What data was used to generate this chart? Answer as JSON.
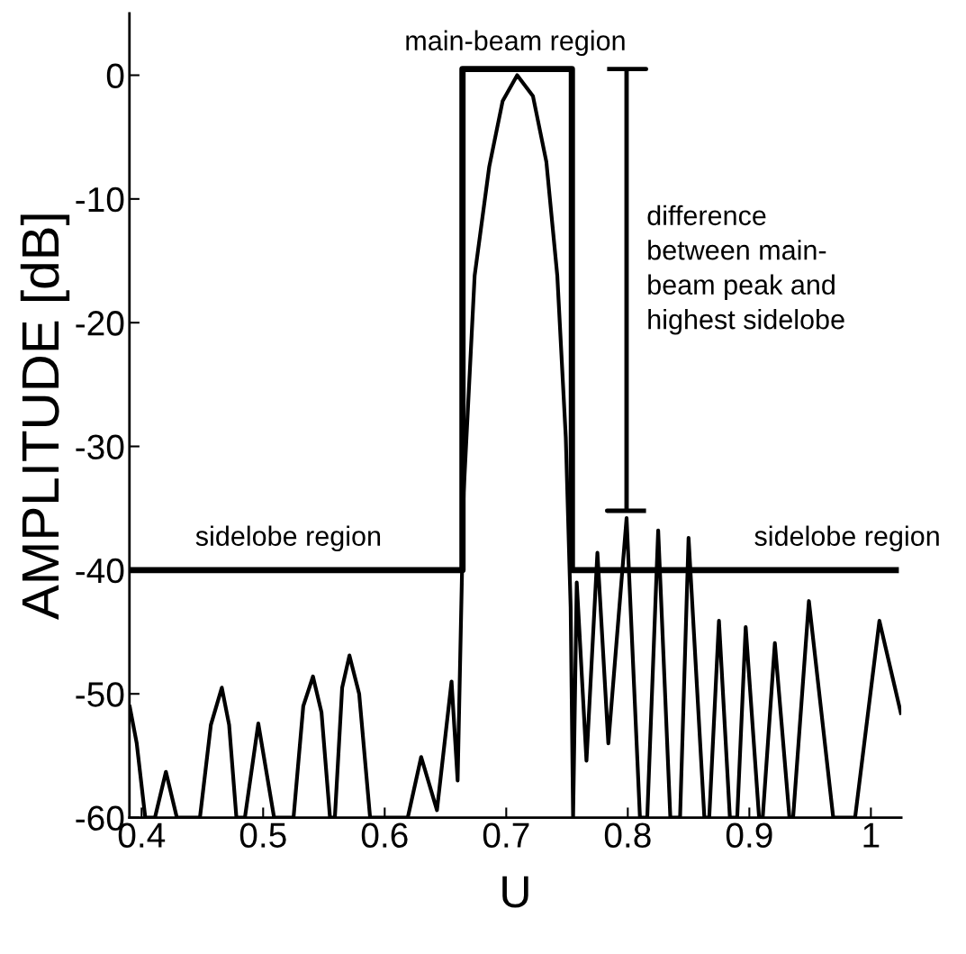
{
  "chart_data": {
    "type": "line",
    "xlabel": "U",
    "ylabel": "AMPLITUDE [dB]",
    "xlim": [
      0.39,
      1.025
    ],
    "ylim": [
      -60,
      5
    ],
    "xticks": [
      0.4,
      0.5,
      0.6,
      0.7,
      0.8,
      0.9,
      1
    ],
    "yticks": [
      0,
      -10,
      -20,
      -30,
      -40,
      -50,
      -60
    ],
    "grid": false,
    "legend": false,
    "series": [
      {
        "color": "#000000",
        "x": [
          0.39,
          0.396,
          0.403,
          0.411,
          0.42,
          0.429,
          0.448,
          0.457,
          0.466,
          0.472,
          0.478,
          0.485,
          0.496,
          0.509,
          0.525,
          0.533,
          0.541,
          0.548,
          0.555,
          0.559,
          0.565,
          0.571,
          0.579,
          0.588,
          0.619,
          0.63,
          0.643,
          0.655,
          0.66,
          0.665,
          0.674,
          0.686,
          0.697,
          0.709,
          0.722,
          0.733,
          0.742,
          0.749,
          0.753,
          0.755,
          0.758,
          0.766,
          0.775,
          0.784,
          0.799,
          0.81,
          0.816,
          0.825,
          0.835,
          0.843,
          0.85,
          0.863,
          0.867,
          0.875,
          0.884,
          0.89,
          0.897,
          0.908,
          0.911,
          0.921,
          0.933,
          0.936,
          0.949,
          0.969,
          0.987,
          1.007,
          1.025
        ],
        "values": [
          -50.9,
          -54,
          -60,
          -60,
          -56.3,
          -60,
          -60,
          -52.5,
          -49.5,
          -52.5,
          -60,
          -60,
          -52.4,
          -60,
          -60,
          -51,
          -48.6,
          -51.5,
          -60,
          -60,
          -49.5,
          -46.9,
          -50,
          -60,
          -60,
          -55.1,
          -59.4,
          -49.0,
          -57.0,
          -33.7,
          -16.2,
          -7.4,
          -2.1,
          0,
          -1.7,
          -7,
          -16.2,
          -29.3,
          -43,
          -60,
          -41,
          -55.4,
          -38.6,
          -54,
          -35.8,
          -60,
          -60,
          -36.8,
          -60,
          -60,
          -37.4,
          -60,
          -60,
          -44.1,
          -60,
          -60,
          -44.6,
          -60,
          -60,
          -45.9,
          -60,
          -60,
          -42.5,
          -60,
          -60,
          -44.1,
          -51.7
        ]
      },
      {
        "color": "#000000",
        "x": [
          0.39,
          0.664,
          0.664,
          0.754,
          0.754,
          1.023
        ],
        "values": [
          -40,
          -40,
          0.5,
          0.5,
          -40,
          -40
        ]
      },
      {
        "color": "#000000",
        "x": [
          0.783,
          0.815,
          0.799,
          0.799,
          0.783,
          0.815
        ],
        "values": [
          0.5,
          0.5,
          0.5,
          -35.2,
          -35.2,
          -35.2
        ]
      }
    ],
    "annotations": [
      "main-beam region",
      "sidelobe region",
      "sidelobe region",
      "difference\nbetween main-\nbeam peak and\nhighest sidelobe"
    ]
  }
}
